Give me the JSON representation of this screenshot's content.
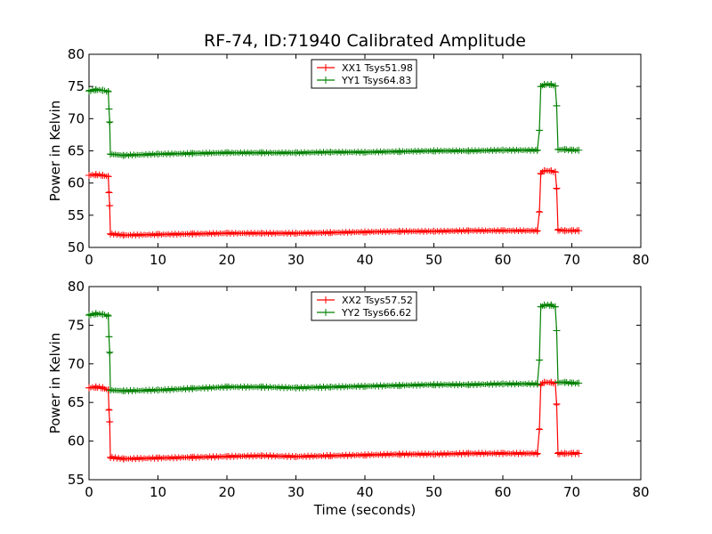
{
  "chart_data": {
    "type": "line",
    "title": "RF-74, ID:71940 Calibrated Amplitude",
    "xlabel": "Time (seconds)",
    "colors": {
      "red": "#ff0000",
      "green": "#008000"
    },
    "subplots": [
      {
        "ylabel": "Power in Kelvin",
        "xlim": [
          0,
          80
        ],
        "ylim": [
          50,
          80
        ],
        "xticks": [
          "0",
          "10",
          "20",
          "30",
          "40",
          "50",
          "60",
          "70",
          "80"
        ],
        "yticks": [
          "50",
          "55",
          "60",
          "65",
          "70",
          "75",
          "80"
        ],
        "legend_position": "upper center",
        "series": [
          {
            "name": "XX1 Tsys51.98",
            "color": "#ff0000",
            "marker": "+",
            "points": [
              [
                0,
                61.2
              ],
              [
                1,
                61.3
              ],
              [
                2,
                61.2
              ],
              [
                2.8,
                61.0
              ],
              [
                2.9,
                58.5
              ],
              [
                3.0,
                56.5
              ],
              [
                3.1,
                52.1
              ],
              [
                5,
                51.9
              ],
              [
                10,
                52.0
              ],
              [
                15,
                52.1
              ],
              [
                20,
                52.2
              ],
              [
                25,
                52.2
              ],
              [
                30,
                52.2
              ],
              [
                35,
                52.3
              ],
              [
                40,
                52.4
              ],
              [
                45,
                52.5
              ],
              [
                50,
                52.5
              ],
              [
                55,
                52.6
              ],
              [
                60,
                52.6
              ],
              [
                65,
                52.6
              ],
              [
                65.3,
                55.5
              ],
              [
                65.5,
                61.5
              ],
              [
                66,
                61.9
              ],
              [
                67,
                61.9
              ],
              [
                67.6,
                61.7
              ],
              [
                67.8,
                59.2
              ],
              [
                68.0,
                52.7
              ],
              [
                69,
                52.6
              ],
              [
                70,
                52.6
              ],
              [
                71,
                52.6
              ]
            ]
          },
          {
            "name": "YY1 Tsys64.83",
            "color": "#008000",
            "marker": "+",
            "points": [
              [
                0,
                74.3
              ],
              [
                1,
                74.5
              ],
              [
                2,
                74.4
              ],
              [
                2.8,
                74.2
              ],
              [
                2.9,
                71.5
              ],
              [
                3.0,
                69.5
              ],
              [
                3.1,
                64.5
              ],
              [
                5,
                64.3
              ],
              [
                10,
                64.5
              ],
              [
                15,
                64.6
              ],
              [
                20,
                64.7
              ],
              [
                25,
                64.7
              ],
              [
                30,
                64.7
              ],
              [
                35,
                64.8
              ],
              [
                40,
                64.8
              ],
              [
                45,
                64.9
              ],
              [
                50,
                65.0
              ],
              [
                55,
                65.0
              ],
              [
                60,
                65.1
              ],
              [
                65,
                65.1
              ],
              [
                65.3,
                68.2
              ],
              [
                65.5,
                75.0
              ],
              [
                66,
                75.3
              ],
              [
                67,
                75.3
              ],
              [
                67.6,
                75.1
              ],
              [
                67.8,
                72.0
              ],
              [
                68.0,
                65.2
              ],
              [
                69,
                65.2
              ],
              [
                70,
                65.1
              ],
              [
                71,
                65.1
              ]
            ]
          }
        ]
      },
      {
        "ylabel": "Power in Kelvin",
        "xlim": [
          0,
          80
        ],
        "ylim": [
          55,
          80
        ],
        "xticks": [
          "0",
          "10",
          "20",
          "30",
          "40",
          "50",
          "60",
          "70",
          "80"
        ],
        "yticks": [
          "55",
          "60",
          "65",
          "70",
          "75",
          "80"
        ],
        "legend_position": "upper center",
        "series": [
          {
            "name": "XX2 Tsys57.52",
            "color": "#ff0000",
            "marker": "+",
            "points": [
              [
                0,
                66.9
              ],
              [
                1,
                67.0
              ],
              [
                2,
                66.9
              ],
              [
                2.8,
                66.6
              ],
              [
                2.9,
                64.0
              ],
              [
                3.0,
                62.5
              ],
              [
                3.1,
                57.9
              ],
              [
                5,
                57.7
              ],
              [
                10,
                57.8
              ],
              [
                15,
                57.9
              ],
              [
                20,
                58.0
              ],
              [
                25,
                58.1
              ],
              [
                30,
                58.0
              ],
              [
                35,
                58.1
              ],
              [
                40,
                58.2
              ],
              [
                45,
                58.3
              ],
              [
                50,
                58.3
              ],
              [
                55,
                58.4
              ],
              [
                60,
                58.4
              ],
              [
                65,
                58.4
              ],
              [
                65.3,
                61.5
              ],
              [
                65.5,
                67.3
              ],
              [
                66,
                67.6
              ],
              [
                67,
                67.6
              ],
              [
                67.6,
                67.5
              ],
              [
                67.8,
                64.8
              ],
              [
                68.0,
                58.4
              ],
              [
                69,
                58.4
              ],
              [
                70,
                58.4
              ],
              [
                71,
                58.4
              ]
            ]
          },
          {
            "name": "YY2 Tsys66.62",
            "color": "#008000",
            "marker": "+",
            "points": [
              [
                0,
                76.3
              ],
              [
                1,
                76.5
              ],
              [
                2,
                76.4
              ],
              [
                2.8,
                76.2
              ],
              [
                2.9,
                73.5
              ],
              [
                3.0,
                71.5
              ],
              [
                3.1,
                66.6
              ],
              [
                5,
                66.5
              ],
              [
                10,
                66.6
              ],
              [
                15,
                66.8
              ],
              [
                20,
                67.0
              ],
              [
                25,
                67.0
              ],
              [
                30,
                66.9
              ],
              [
                35,
                67.0
              ],
              [
                40,
                67.1
              ],
              [
                45,
                67.2
              ],
              [
                50,
                67.3
              ],
              [
                55,
                67.3
              ],
              [
                60,
                67.4
              ],
              [
                65,
                67.4
              ],
              [
                65.3,
                70.5
              ],
              [
                65.5,
                77.4
              ],
              [
                66,
                77.6
              ],
              [
                67,
                77.6
              ],
              [
                67.6,
                77.4
              ],
              [
                67.8,
                74.3
              ],
              [
                68.0,
                67.6
              ],
              [
                69,
                67.6
              ],
              [
                70,
                67.5
              ],
              [
                71,
                67.5
              ]
            ]
          }
        ]
      }
    ]
  }
}
